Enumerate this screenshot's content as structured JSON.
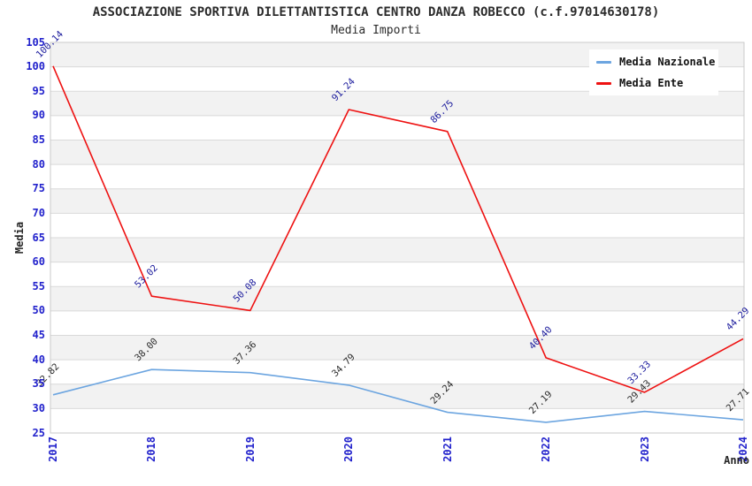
{
  "chart_data": {
    "type": "line",
    "title": "ASSOCIAZIONE SPORTIVA DILETTANTISTICA CENTRO DANZA ROBECCO (c.f.97014630178)",
    "subtitle": "Media Importi",
    "xlabel": "Anno",
    "ylabel": "Media",
    "x": [
      2017,
      2018,
      2019,
      2020,
      2021,
      2022,
      2023,
      2024
    ],
    "series": [
      {
        "name": "Media Nazionale",
        "color": "#6ca5e0",
        "label_color": "#2b2b2b",
        "values": [
          32.82,
          38.0,
          37.36,
          34.79,
          29.24,
          27.19,
          29.43,
          27.71
        ]
      },
      {
        "name": "Media Ente",
        "color": "#ee1111",
        "label_color": "#1a1a9c",
        "values": [
          100.14,
          53.02,
          50.08,
          91.24,
          86.75,
          40.4,
          33.33,
          44.29
        ]
      }
    ],
    "ylim": [
      25,
      105
    ],
    "y_tick_step": 5,
    "grid": true,
    "band_colors": [
      "#f2f2f2",
      "#ffffff"
    ],
    "axis_tick_color": "#2222cc",
    "gridline_color": "#d9d9d9",
    "plot_border_color": "#c9c9c9",
    "legend_position": "top-right"
  }
}
